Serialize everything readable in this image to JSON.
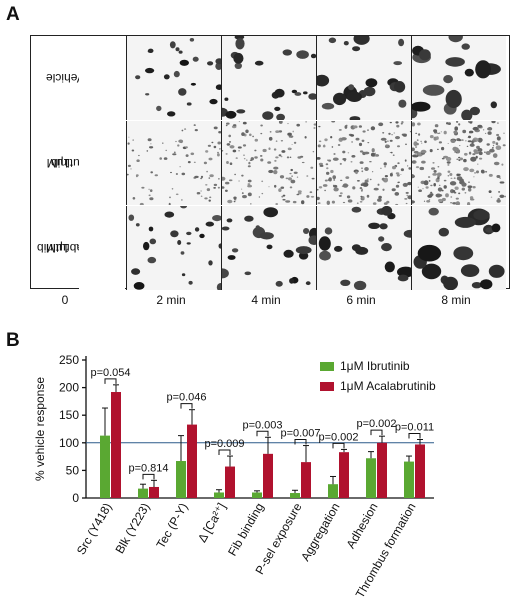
{
  "panel_a": {
    "letter": "A",
    "rows": [
      {
        "label_lines": [
          "Vehicle"
        ],
        "pattern": "vehicle"
      },
      {
        "label_lines": [
          "1μM",
          "Ibrutinib"
        ],
        "pattern": "ibrutinib"
      },
      {
        "label_lines": [
          "1μM",
          "Acalabrutinib"
        ],
        "pattern": "acalabrutinib"
      }
    ],
    "time_labels": [
      "0",
      "2 min",
      "4 min",
      "6 min",
      "8 min"
    ]
  },
  "panel_b": {
    "letter": "B",
    "ylabel": "% vehicle response",
    "legend": [
      {
        "label": "1μM Ibrutinib",
        "color": "#5aa832"
      },
      {
        "label": "1μM Acalabrutinib",
        "color": "#b0122e"
      }
    ],
    "colors": {
      "ibrutinib": "#5aa832",
      "acalabrutinib": "#b0122e",
      "reference": "#2c5a8a"
    },
    "reference_line": 100
  },
  "chart_data": {
    "type": "bar",
    "title": "",
    "xlabel": "",
    "ylabel": "% vehicle response",
    "ylim": [
      0,
      250
    ],
    "yticks": [
      0,
      50,
      100,
      150,
      200,
      250
    ],
    "categories": [
      "Src (Y418)",
      "Blk (Y223)",
      "Tec (P-Y)",
      "Δ [Ca²⁺]",
      "Fib binding",
      "P-sel exposure",
      "Aggregation",
      "Adhesion",
      "Thrombus formation"
    ],
    "series": [
      {
        "name": "1μM Ibrutinib",
        "values": [
          113,
          17,
          67,
          10,
          10,
          9,
          25,
          72,
          66
        ],
        "errors": [
          50,
          8,
          46,
          5,
          3,
          5,
          14,
          12,
          10
        ]
      },
      {
        "name": "1μM Acalabrutinib",
        "values": [
          192,
          20,
          133,
          57,
          80,
          65,
          83,
          100,
          97
        ],
        "errors": [
          13,
          12,
          27,
          19,
          30,
          30,
          5,
          12,
          9
        ]
      }
    ],
    "p_values": [
      "p=0.054",
      "p=0.814",
      "p=0.046",
      "p=0.009",
      "p=0.003",
      "p=0.007",
      "p=0.002",
      "p=0.002",
      "p=0.011"
    ],
    "legend_position": "top-right",
    "grid": false
  }
}
